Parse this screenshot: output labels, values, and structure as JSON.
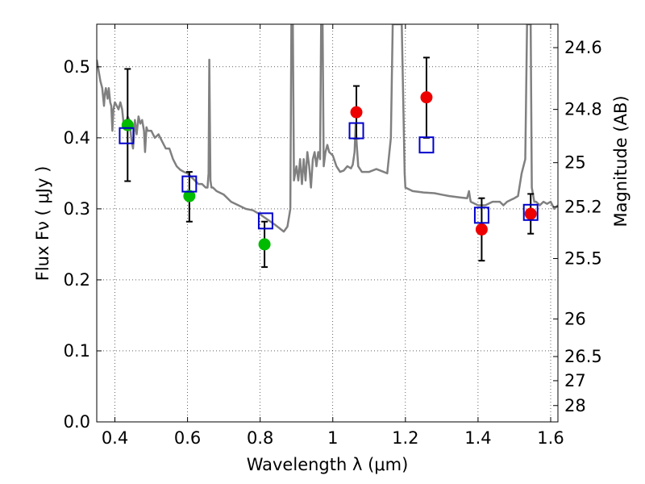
{
  "chart_data": {
    "type": "scatter",
    "xlabel": "Wavelength  λ (μm)",
    "ylabel_left": "Flux  Fν  ( μJy )",
    "ylabel_right": "Magnitude (AB)",
    "xlim": [
      0.35,
      1.62
    ],
    "ylim": [
      0.0,
      0.56
    ],
    "grid": true,
    "x_ticks": [
      0.4,
      0.6,
      0.8,
      1.0,
      1.2,
      1.4,
      1.6
    ],
    "x_tick_labels": [
      "0.4",
      "0.6",
      "0.8",
      "1",
      "1.2",
      "1.4",
      "1.6"
    ],
    "y_ticks": [
      0.0,
      0.1,
      0.2,
      0.3,
      0.4,
      0.5
    ],
    "y_tick_labels": [
      "0.0",
      "0.1",
      "0.2",
      "0.3",
      "0.4",
      "0.5"
    ],
    "right_ticks": [
      {
        "label": "24.6",
        "flux": 0.527
      },
      {
        "label": "24.8",
        "flux": 0.44
      },
      {
        "label": "25",
        "flux": 0.365
      },
      {
        "label": "25.2",
        "flux": 0.303
      },
      {
        "label": "25.5",
        "flux": 0.23
      },
      {
        "label": "26",
        "flux": 0.145
      },
      {
        "label": "26.5",
        "flux": 0.092
      },
      {
        "label": "27",
        "flux": 0.058
      },
      {
        "label": "28",
        "flux": 0.023
      }
    ],
    "model_spectrum": {
      "color": "#808080",
      "points": [
        [
          0.35,
          0.51
        ],
        [
          0.36,
          0.48
        ],
        [
          0.365,
          0.47
        ],
        [
          0.37,
          0.445
        ],
        [
          0.372,
          0.46
        ],
        [
          0.375,
          0.47
        ],
        [
          0.38,
          0.455
        ],
        [
          0.383,
          0.47
        ],
        [
          0.387,
          0.45
        ],
        [
          0.39,
          0.445
        ],
        [
          0.393,
          0.41
        ],
        [
          0.396,
          0.44
        ],
        [
          0.4,
          0.45
        ],
        [
          0.405,
          0.445
        ],
        [
          0.41,
          0.44
        ],
        [
          0.415,
          0.45
        ],
        [
          0.42,
          0.44
        ],
        [
          0.425,
          0.415
        ],
        [
          0.43,
          0.42
        ],
        [
          0.435,
          0.43
        ],
        [
          0.44,
          0.425
        ],
        [
          0.445,
          0.4
        ],
        [
          0.45,
          0.385
        ],
        [
          0.455,
          0.425
        ],
        [
          0.46,
          0.405
        ],
        [
          0.465,
          0.43
        ],
        [
          0.47,
          0.42
        ],
        [
          0.475,
          0.425
        ],
        [
          0.48,
          0.41
        ],
        [
          0.483,
          0.38
        ],
        [
          0.487,
          0.415
        ],
        [
          0.49,
          0.41
        ],
        [
          0.5,
          0.41
        ],
        [
          0.51,
          0.4
        ],
        [
          0.52,
          0.405
        ],
        [
          0.53,
          0.395
        ],
        [
          0.54,
          0.385
        ],
        [
          0.55,
          0.385
        ],
        [
          0.56,
          0.37
        ],
        [
          0.57,
          0.36
        ],
        [
          0.58,
          0.355
        ],
        [
          0.59,
          0.352
        ],
        [
          0.6,
          0.35
        ],
        [
          0.61,
          0.345
        ],
        [
          0.62,
          0.34
        ],
        [
          0.63,
          0.335
        ],
        [
          0.64,
          0.335
        ],
        [
          0.65,
          0.33
        ],
        [
          0.655,
          0.33
        ],
        [
          0.658,
          0.35
        ],
        [
          0.66,
          0.51
        ],
        [
          0.663,
          0.34
        ],
        [
          0.666,
          0.33
        ],
        [
          0.67,
          0.33
        ],
        [
          0.68,
          0.325
        ],
        [
          0.7,
          0.32
        ],
        [
          0.72,
          0.31
        ],
        [
          0.74,
          0.305
        ],
        [
          0.76,
          0.3
        ],
        [
          0.78,
          0.298
        ],
        [
          0.8,
          0.292
        ],
        [
          0.82,
          0.285
        ],
        [
          0.84,
          0.278
        ],
        [
          0.855,
          0.272
        ],
        [
          0.865,
          0.268
        ],
        [
          0.875,
          0.275
        ],
        [
          0.883,
          0.3
        ],
        [
          0.886,
          0.56
        ],
        [
          0.89,
          0.56
        ],
        [
          0.893,
          0.34
        ],
        [
          0.9,
          0.36
        ],
        [
          0.905,
          0.34
        ],
        [
          0.91,
          0.37
        ],
        [
          0.915,
          0.335
        ],
        [
          0.92,
          0.37
        ],
        [
          0.925,
          0.34
        ],
        [
          0.93,
          0.38
        ],
        [
          0.935,
          0.36
        ],
        [
          0.94,
          0.33
        ],
        [
          0.945,
          0.37
        ],
        [
          0.95,
          0.38
        ],
        [
          0.955,
          0.36
        ],
        [
          0.96,
          0.38
        ],
        [
          0.965,
          0.37
        ],
        [
          0.968,
          0.56
        ],
        [
          0.972,
          0.56
        ],
        [
          0.975,
          0.36
        ],
        [
          0.98,
          0.38
        ],
        [
          0.985,
          0.39
        ],
        [
          0.99,
          0.38
        ],
        [
          1.0,
          0.375
        ],
        [
          1.01,
          0.36
        ],
        [
          1.02,
          0.352
        ],
        [
          1.03,
          0.354
        ],
        [
          1.04,
          0.36
        ],
        [
          1.05,
          0.357
        ],
        [
          1.055,
          0.362
        ],
        [
          1.06,
          0.38
        ],
        [
          1.063,
          0.42
        ],
        [
          1.066,
          0.39
        ],
        [
          1.07,
          0.36
        ],
        [
          1.08,
          0.352
        ],
        [
          1.1,
          0.352
        ],
        [
          1.12,
          0.356
        ],
        [
          1.14,
          0.352
        ],
        [
          1.15,
          0.35
        ],
        [
          1.16,
          0.4
        ],
        [
          1.165,
          0.56
        ],
        [
          1.175,
          0.56
        ],
        [
          1.18,
          0.56
        ],
        [
          1.19,
          0.56
        ],
        [
          1.198,
          0.35
        ],
        [
          1.2,
          0.33
        ],
        [
          1.22,
          0.325
        ],
        [
          1.25,
          0.323
        ],
        [
          1.28,
          0.322
        ],
        [
          1.3,
          0.32
        ],
        [
          1.32,
          0.318
        ],
        [
          1.35,
          0.316
        ],
        [
          1.37,
          0.315
        ],
        [
          1.375,
          0.325
        ],
        [
          1.378,
          0.315
        ],
        [
          1.38,
          0.31
        ],
        [
          1.4,
          0.305
        ],
        [
          1.42,
          0.305
        ],
        [
          1.44,
          0.31
        ],
        [
          1.46,
          0.31
        ],
        [
          1.47,
          0.305
        ],
        [
          1.48,
          0.31
        ],
        [
          1.5,
          0.315
        ],
        [
          1.51,
          0.318
        ],
        [
          1.52,
          0.35
        ],
        [
          1.53,
          0.37
        ],
        [
          1.535,
          0.56
        ],
        [
          1.545,
          0.56
        ],
        [
          1.548,
          0.33
        ],
        [
          1.555,
          0.31
        ],
        [
          1.56,
          0.31
        ],
        [
          1.57,
          0.305
        ],
        [
          1.58,
          0.31
        ],
        [
          1.59,
          0.307
        ],
        [
          1.6,
          0.31
        ],
        [
          1.61,
          0.3
        ],
        [
          1.62,
          0.305
        ]
      ]
    },
    "series": [
      {
        "marker": "circle",
        "color": "#00bb00",
        "points": [
          [
            0.435,
            0.418
          ],
          [
            0.605,
            0.318
          ],
          [
            0.812,
            0.25
          ]
        ]
      },
      {
        "marker": "circle",
        "color": "#ee0000",
        "points": [
          [
            1.065,
            0.436
          ],
          [
            1.258,
            0.457
          ],
          [
            1.41,
            0.271
          ],
          [
            1.545,
            0.293
          ]
        ]
      },
      {
        "marker": "open-square",
        "color": "#0000cc",
        "points": [
          [
            0.432,
            0.403
          ],
          [
            0.605,
            0.335
          ],
          [
            0.815,
            0.283
          ],
          [
            1.065,
            0.41
          ],
          [
            1.258,
            0.39
          ],
          [
            1.41,
            0.291
          ],
          [
            1.545,
            0.295
          ]
        ]
      }
    ],
    "error_bars": {
      "color": "#000000",
      "points": [
        {
          "x": 0.435,
          "y": 0.418,
          "low": 0.339,
          "high": 0.497
        },
        {
          "x": 0.605,
          "y": 0.318,
          "low": 0.282,
          "high": 0.352
        },
        {
          "x": 0.812,
          "y": 0.25,
          "low": 0.218,
          "high": 0.282
        },
        {
          "x": 1.065,
          "y": 0.436,
          "low": 0.399,
          "high": 0.473
        },
        {
          "x": 1.258,
          "y": 0.457,
          "low": 0.4,
          "high": 0.513
        },
        {
          "x": 1.41,
          "y": 0.271,
          "low": 0.227,
          "high": 0.315
        },
        {
          "x": 1.545,
          "y": 0.293,
          "low": 0.265,
          "high": 0.321
        }
      ]
    }
  }
}
